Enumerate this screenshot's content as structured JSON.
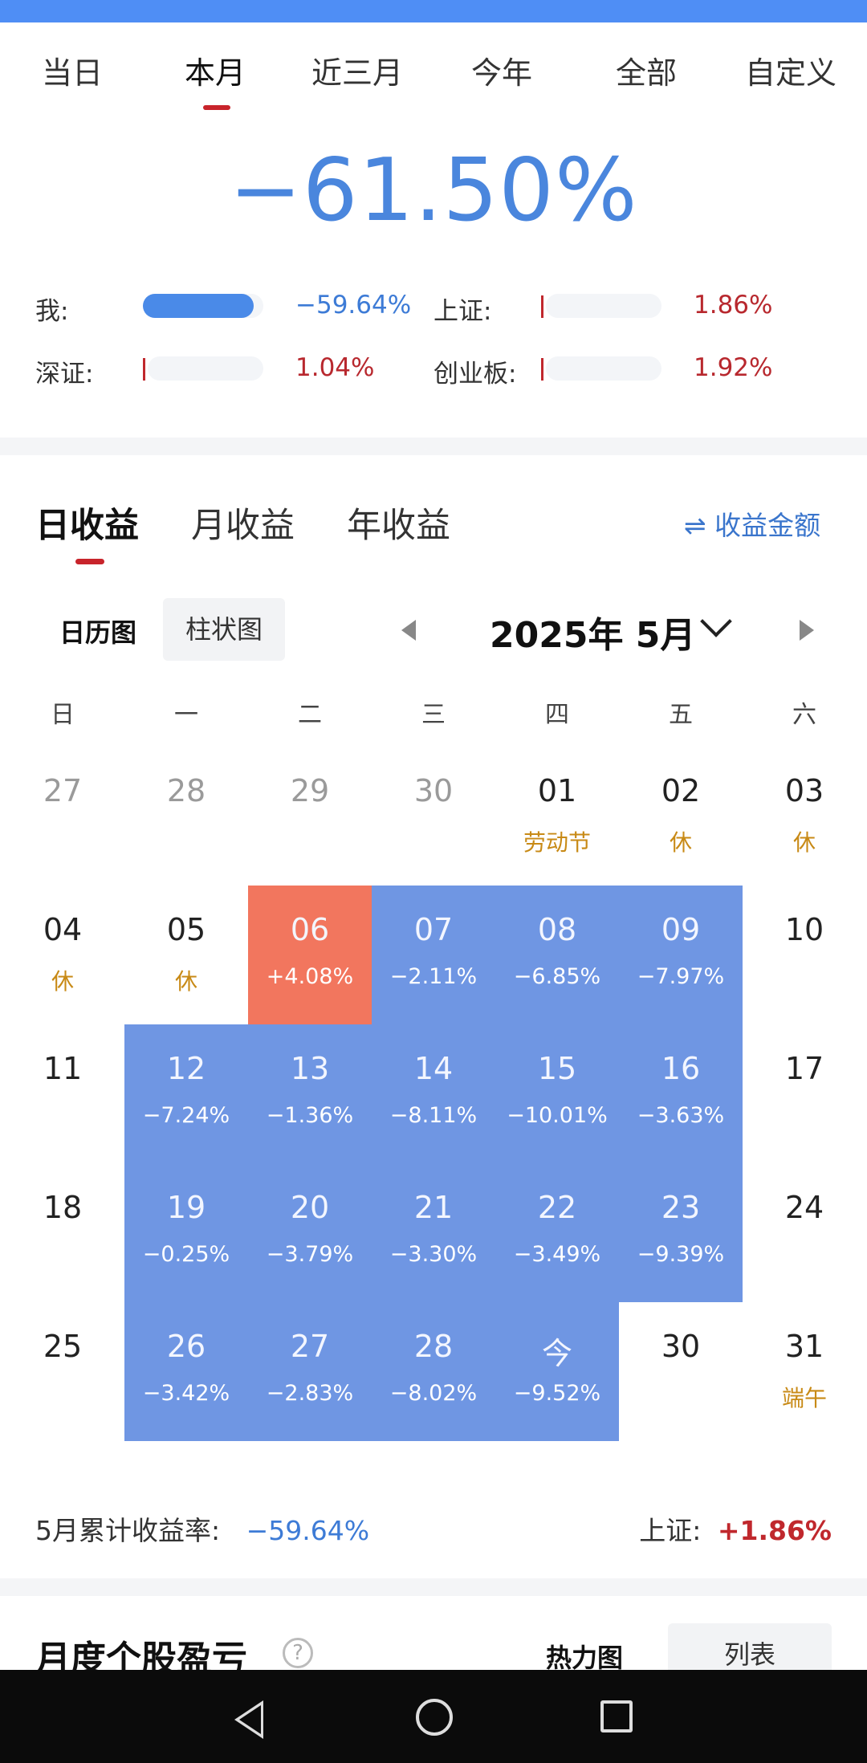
{
  "period_tabs": [
    "当日",
    "本月",
    "近三月",
    "今年",
    "全部",
    "自定义"
  ],
  "active_period": "本月",
  "total_return": "−61.50%",
  "benchmarks": {
    "me": {
      "label": "我:",
      "value": "−59.64%",
      "bar_fill": 0.92
    },
    "sh": {
      "label": "上证:",
      "value": "1.86%"
    },
    "sz": {
      "label": "深证:",
      "value": "1.04%"
    },
    "cyb": {
      "label": "创业板:",
      "value": "1.92%"
    }
  },
  "earn_tabs": [
    "日收益",
    "月收益",
    "年收益"
  ],
  "amount_toggle": "⇌ 收益金额",
  "view_modes": {
    "calendar": "日历图",
    "bar": "柱状图"
  },
  "month_label": "2025年 5月",
  "weekdays": [
    "日",
    "一",
    "二",
    "三",
    "四",
    "五",
    "六"
  ],
  "calendar": [
    [
      {
        "d": "27",
        "o": 1
      },
      {
        "d": "28",
        "o": 1
      },
      {
        "d": "29",
        "o": 1
      },
      {
        "d": "30",
        "o": 1
      },
      {
        "d": "01",
        "h": "劳动节"
      },
      {
        "d": "02",
        "h": "休"
      },
      {
        "d": "03",
        "h": "休"
      }
    ],
    [
      {
        "d": "04",
        "h": "休"
      },
      {
        "d": "05",
        "h": "休"
      },
      {
        "d": "06",
        "v": "+4.08%",
        "s": "gain"
      },
      {
        "d": "07",
        "v": "−2.11%",
        "s": "loss"
      },
      {
        "d": "08",
        "v": "−6.85%",
        "s": "loss"
      },
      {
        "d": "09",
        "v": "−7.97%",
        "s": "loss"
      },
      {
        "d": "10"
      }
    ],
    [
      {
        "d": "11"
      },
      {
        "d": "12",
        "v": "−7.24%",
        "s": "loss"
      },
      {
        "d": "13",
        "v": "−1.36%",
        "s": "loss"
      },
      {
        "d": "14",
        "v": "−8.11%",
        "s": "loss"
      },
      {
        "d": "15",
        "v": "−10.01%",
        "s": "loss"
      },
      {
        "d": "16",
        "v": "−3.63%",
        "s": "loss"
      },
      {
        "d": "17"
      }
    ],
    [
      {
        "d": "18"
      },
      {
        "d": "19",
        "v": "−0.25%",
        "s": "loss"
      },
      {
        "d": "20",
        "v": "−3.79%",
        "s": "loss"
      },
      {
        "d": "21",
        "v": "−3.30%",
        "s": "loss"
      },
      {
        "d": "22",
        "v": "−3.49%",
        "s": "loss"
      },
      {
        "d": "23",
        "v": "−9.39%",
        "s": "loss"
      },
      {
        "d": "24"
      }
    ],
    [
      {
        "d": "25"
      },
      {
        "d": "26",
        "v": "−3.42%",
        "s": "loss"
      },
      {
        "d": "27",
        "v": "−2.83%",
        "s": "loss"
      },
      {
        "d": "28",
        "v": "−8.02%",
        "s": "loss"
      },
      {
        "d": "今",
        "v": "−9.52%",
        "s": "loss"
      },
      {
        "d": "30"
      },
      {
        "d": "31",
        "h": "端午"
      }
    ]
  ],
  "summary": {
    "label": "5月累计收益率:",
    "value": "−59.64%",
    "bench_label": "上证:",
    "bench_value": "+1.86%"
  },
  "stock_section": {
    "title": "月度个股盈亏",
    "help": "?",
    "heatmap": "热力图",
    "list": "列表"
  },
  "colors": {
    "loss": "#6f96e3",
    "gain": "#f2765e",
    "accent_red": "#c8242b",
    "blue_text": "#3d7bd6"
  }
}
